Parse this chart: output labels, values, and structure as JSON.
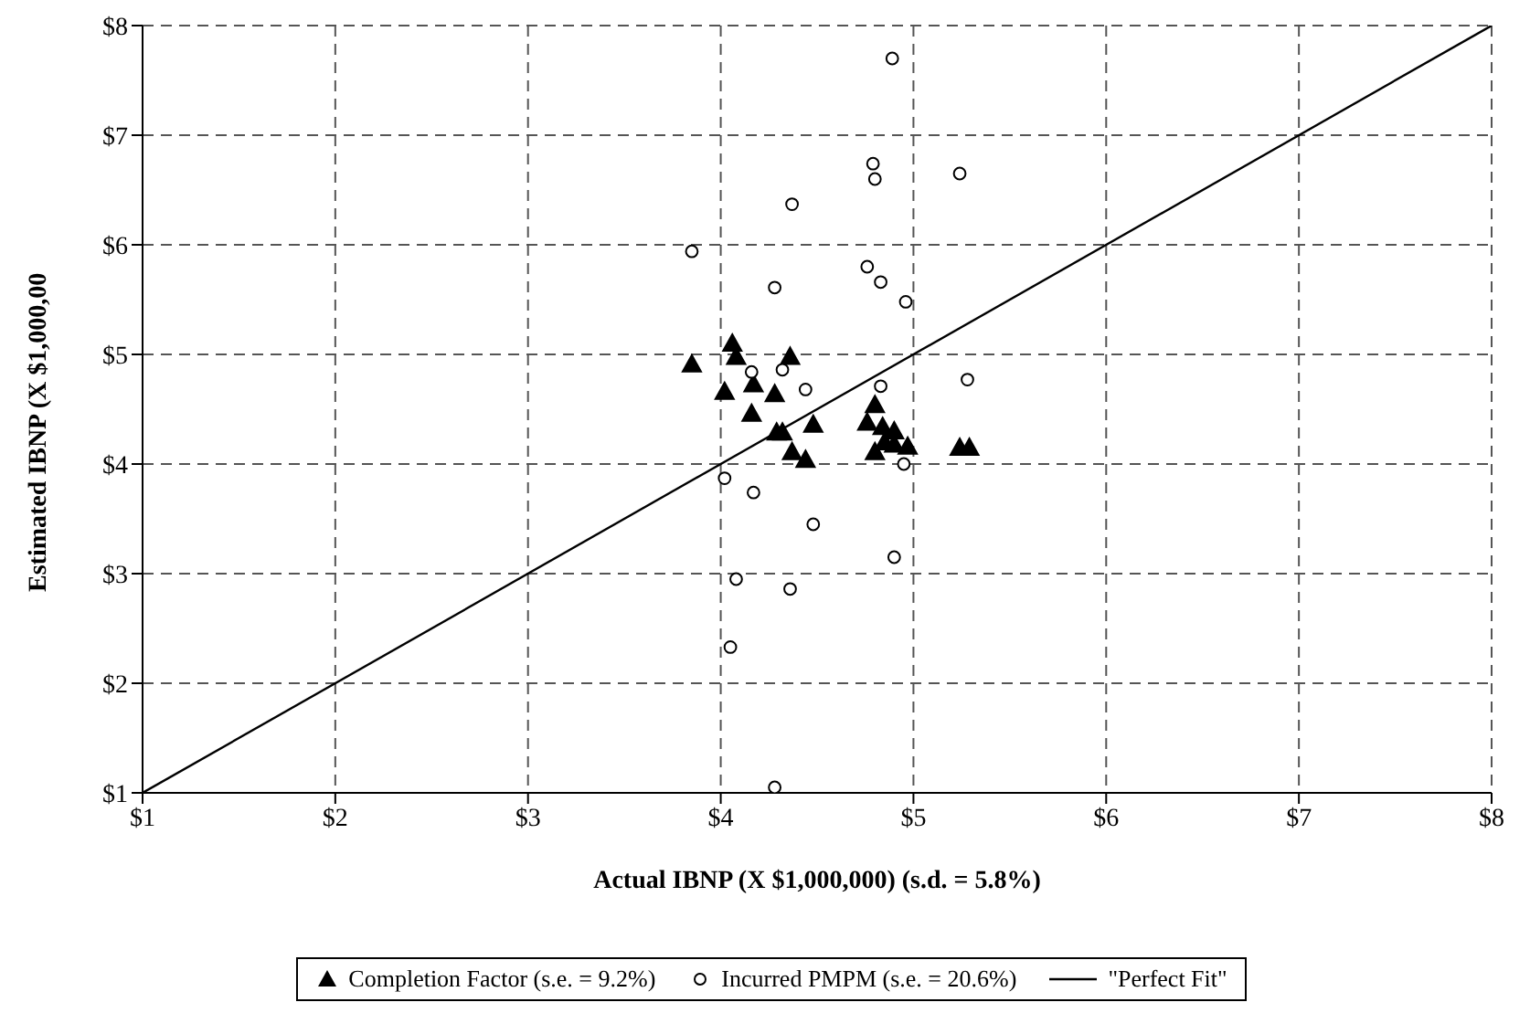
{
  "chart_data": {
    "type": "scatter",
    "xlabel": "Actual IBNP (X $1,000,000) (s.d. = 5.8%)",
    "ylabel": "Estimated IBNP (X $1,000,00",
    "xlim": [
      1,
      8
    ],
    "ylim": [
      1,
      8
    ],
    "xticks": [
      {
        "value": 1,
        "label": "$1"
      },
      {
        "value": 2,
        "label": "$2"
      },
      {
        "value": 3,
        "label": "$3"
      },
      {
        "value": 4,
        "label": "$4"
      },
      {
        "value": 5,
        "label": "$5"
      },
      {
        "value": 6,
        "label": "$6"
      },
      {
        "value": 7,
        "label": "$7"
      },
      {
        "value": 8,
        "label": "$8"
      }
    ],
    "yticks": [
      {
        "value": 1,
        "label": "$1"
      },
      {
        "value": 2,
        "label": "$2"
      },
      {
        "value": 3,
        "label": "$3"
      },
      {
        "value": 4,
        "label": "$4"
      },
      {
        "value": 5,
        "label": "$5"
      },
      {
        "value": 6,
        "label": "$6"
      },
      {
        "value": 7,
        "label": "$7"
      },
      {
        "value": 8,
        "label": "$8"
      }
    ],
    "grid": true,
    "legend": "bottom",
    "series": [
      {
        "name": "Completion Factor (s.e. = 9.2%)",
        "marker": "triangle",
        "color": "#000000",
        "x": [
          3.85,
          4.06,
          4.08,
          4.36,
          4.02,
          4.17,
          4.28,
          4.16,
          4.29,
          4.32,
          4.37,
          4.44,
          4.48,
          4.8,
          4.76,
          4.84,
          4.9,
          4.8,
          4.85,
          4.9,
          4.97,
          5.24,
          5.29
        ],
        "values": [
          4.91,
          5.1,
          4.98,
          4.98,
          4.66,
          4.73,
          4.64,
          4.46,
          4.29,
          4.29,
          4.11,
          4.04,
          4.36,
          4.54,
          4.38,
          4.34,
          4.3,
          4.11,
          4.2,
          4.18,
          4.16,
          4.15,
          4.15
        ]
      },
      {
        "name": "Incurred PMPM (s.e. = 20.6%)",
        "marker": "circle",
        "color": "#000000",
        "x": [
          3.85,
          4.89,
          4.79,
          4.8,
          5.24,
          4.37,
          4.76,
          4.83,
          4.96,
          4.28,
          4.16,
          4.32,
          4.44,
          4.83,
          5.28,
          4.02,
          4.17,
          4.48,
          4.9,
          4.95,
          4.08,
          4.36,
          4.05,
          4.28
        ],
        "values": [
          5.94,
          7.7,
          6.74,
          6.6,
          6.65,
          6.37,
          5.8,
          5.66,
          5.48,
          5.61,
          4.84,
          4.86,
          4.68,
          4.71,
          4.77,
          3.87,
          3.74,
          3.45,
          3.15,
          4.0,
          2.95,
          2.86,
          2.33,
          1.05
        ]
      },
      {
        "name": "\"Perfect Fit\"",
        "type": "line",
        "marker": "none",
        "color": "#000000",
        "x": [
          1,
          8
        ],
        "values": [
          1,
          8
        ]
      }
    ]
  }
}
